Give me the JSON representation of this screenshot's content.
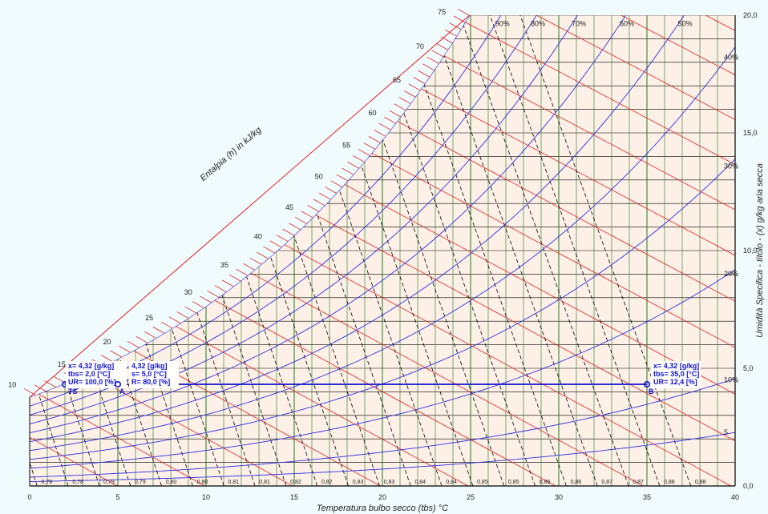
{
  "chart_data": {
    "type": "psychrometric",
    "xlabel": "Temperatura bulbo secco (tbs) °C",
    "ylabel": "Umidità Specifica - titolo - (x) g/kg aria secca",
    "enthalpy_label": "Entalpia (h) in kJ/kg",
    "xlim": [
      0,
      40
    ],
    "ylim": [
      0,
      20
    ],
    "x_ticks": [
      "0",
      "5",
      "10",
      "15",
      "20",
      "25",
      "30",
      "35",
      "40"
    ],
    "y_ticks": [
      "0,0",
      "5,0",
      "10,0",
      "15,0",
      "20,0"
    ],
    "enthalpy_ticks": [
      "10",
      "15",
      "20",
      "25",
      "30",
      "35",
      "40",
      "45",
      "50",
      "55",
      "60",
      "65",
      "70",
      "75"
    ],
    "rh_labels": [
      "5",
      "10%",
      "20%",
      "30%",
      "40%",
      "50%",
      "60%",
      "70%",
      "80%",
      "90%"
    ],
    "volume_labels": [
      "0,78",
      "0,78",
      "0,79",
      "0,79",
      "0,80",
      "0,80",
      "0,81",
      "0,81",
      "0,82",
      "0,82",
      "0,83",
      "0,83",
      "0,84",
      "0,84",
      "0,85",
      "0,85",
      "0,86",
      "0,86",
      "0,87",
      "0,87",
      "0,88",
      "0,88"
    ],
    "rh_curves": [
      5,
      10,
      20,
      30,
      40,
      50,
      60,
      70,
      80,
      90,
      100
    ],
    "points": [
      {
        "name": "TS",
        "tbs": 2.0,
        "x": 4.32,
        "lines": [
          "x= 4,32 [g/kg]",
          "tbs= 2,0 [°C]",
          "UR= 100,0 [%]"
        ]
      },
      {
        "name": "A",
        "tbs": 5.0,
        "x": 4.32,
        "lines": [
          "4,32 [g/kg]",
          "s= 5,0 [°C]",
          "R= 80,0 [%]"
        ]
      },
      {
        "name": "B",
        "tbs": 35.0,
        "x": 4.32,
        "lines": [
          "x= 4,32 [g/kg]",
          "tbs= 35,0 [°C]",
          "UR= 12,4 [%]"
        ]
      }
    ],
    "colors": {
      "background": "#f0fbfd",
      "chart_fill": "#fdf0e6",
      "grid": "#000000",
      "temperature_lines": "#1d7a1d",
      "enthalpy_lines": "#e02020",
      "rh_curves": "#3030e0",
      "volume_lines": "#000000",
      "process_line": "#1010d0"
    }
  }
}
